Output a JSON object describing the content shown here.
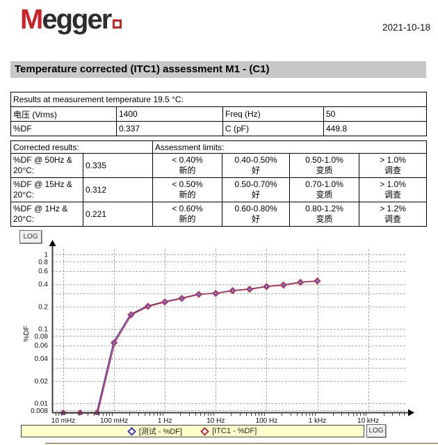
{
  "header": {
    "logo_text": "Megger",
    "date": "2021-10-18"
  },
  "title": "Temperature corrected (ITC1) assessment M1 - (C1)",
  "results_table": {
    "caption": "Results at measurement temperature 19.5 °C:",
    "rows": [
      [
        "电压 (Vrms)",
        "1400",
        "Freq (Hz)",
        "50"
      ],
      [
        "%DF",
        "0.337",
        "C (pF)",
        "449.8"
      ]
    ]
  },
  "corrected_table": {
    "header_left": "Corrected results:",
    "header_right": "Assessment limits:",
    "rows": [
      {
        "label": "%DF @ 50Hz & 20°C:",
        "value": "0.335",
        "limits": [
          {
            "range": "< 0.40%",
            "grade": "新的"
          },
          {
            "range": "0.40-0.50%",
            "grade": "好"
          },
          {
            "range": "0.50-1.0%",
            "grade": "变质"
          },
          {
            "range": "> 1.0%",
            "grade": "调查"
          }
        ]
      },
      {
        "label": "%DF @ 15Hz & 20°C:",
        "value": "0.312",
        "limits": [
          {
            "range": "< 0.50%",
            "grade": "新的"
          },
          {
            "range": "0.50-0.70%",
            "grade": "好"
          },
          {
            "range": "0.70-1.0%",
            "grade": "变质"
          },
          {
            "range": "> 1.0%",
            "grade": "调查"
          }
        ]
      },
      {
        "label": "%DF @ 1Hz & 20°C:",
        "value": "0.221",
        "limits": [
          {
            "range": "< 0.60%",
            "grade": "新的"
          },
          {
            "range": "0.60-0.80%",
            "grade": "好"
          },
          {
            "range": "0.80-1.2%",
            "grade": "变质"
          },
          {
            "range": "> 1.2%",
            "grade": "调查"
          }
        ]
      }
    ]
  },
  "chart_controls": {
    "log_button_label": "LOG"
  },
  "chart_data": {
    "type": "line",
    "x_scale": "log",
    "y_scale": "log",
    "ylabel": "%DF",
    "xlim_hz": [
      0.006,
      50000
    ],
    "ylim": [
      0.008,
      1.2
    ],
    "grid": "dashed",
    "legend_position": "bottom",
    "x_ticks_hz": [
      0.01,
      0.1,
      1,
      10,
      100,
      1000,
      10000
    ],
    "x_tick_labels": [
      "10 mHz",
      "100 mHz",
      "1 Hz",
      "10 Hz",
      "100 Hz",
      "1 kHz",
      "10 kHz"
    ],
    "y_ticks": [
      1,
      0.8,
      0.6,
      0.4,
      0.2,
      0.1,
      0.08,
      0.06,
      0.04,
      0.02,
      0.01,
      0.008
    ],
    "y_tick_labels": [
      "1",
      "0.8",
      "0.6",
      "0.4",
      "0.2",
      "0.1",
      "0.08",
      "0.06",
      "0.04",
      "0.02",
      "0.01",
      "0.008"
    ],
    "y_grid_extra": [
      0.3,
      0.03
    ],
    "frequencies_hz": [
      0.01,
      0.0215,
      0.0464,
      0.1,
      0.215,
      0.464,
      1,
      2.15,
      4.64,
      10,
      21.5,
      46.4,
      100,
      215,
      464,
      1000
    ],
    "series": [
      {
        "name": "[测试 - %DF]",
        "color": "#3939c0",
        "values": [
          0.004,
          0.005,
          0.006,
          0.066,
          0.157,
          0.203,
          0.232,
          0.259,
          0.293,
          0.302,
          0.328,
          0.343,
          0.372,
          0.39,
          0.424,
          0.442
        ]
      },
      {
        "name": "[ITC1 - %DF]",
        "color": "#cc2936",
        "values": [
          0.004,
          0.005,
          0.006,
          0.065,
          0.155,
          0.201,
          0.23,
          0.257,
          0.291,
          0.3,
          0.326,
          0.341,
          0.37,
          0.388,
          0.422,
          0.44
        ]
      }
    ],
    "note": "values below 0.008 are clipped at the bottom axis"
  }
}
